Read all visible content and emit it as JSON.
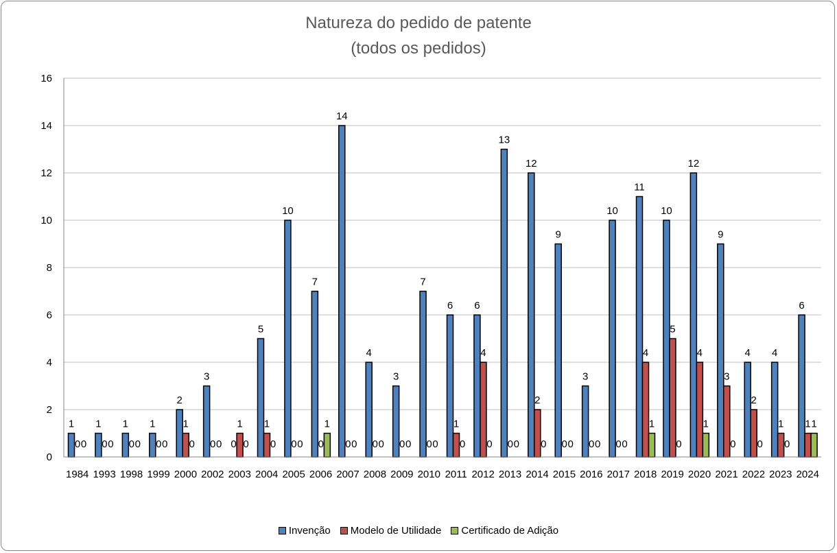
{
  "chart_data": {
    "type": "bar",
    "title": "Natureza do pedido de patente",
    "subtitle": "(todos os pedidos)",
    "categories": [
      "1984",
      "1993",
      "1998",
      "1999",
      "2000",
      "2002",
      "2003",
      "2004",
      "2005",
      "2006",
      "2007",
      "2008",
      "2009",
      "2010",
      "2011",
      "2012",
      "2013",
      "2014",
      "2015",
      "2016",
      "2017",
      "2018",
      "2019",
      "2020",
      "2021",
      "2022",
      "2023",
      "2024"
    ],
    "series": [
      {
        "name": "Invenção",
        "color": "#4F81BD",
        "values": [
          1,
          1,
          1,
          1,
          2,
          3,
          0,
          5,
          10,
          7,
          14,
          4,
          3,
          7,
          6,
          6,
          13,
          12,
          9,
          3,
          10,
          11,
          10,
          12,
          9,
          4,
          4,
          6
        ]
      },
      {
        "name": "Modelo de Utilidade",
        "color": "#C0504D",
        "values": [
          0,
          0,
          0,
          0,
          1,
          0,
          1,
          1,
          0,
          0,
          0,
          0,
          0,
          0,
          1,
          4,
          0,
          2,
          0,
          0,
          0,
          4,
          5,
          4,
          3,
          2,
          1,
          1
        ]
      },
      {
        "name": "Certificado de Adição",
        "color": "#9BBB59",
        "values": [
          0,
          0,
          0,
          0,
          0,
          0,
          0,
          0,
          0,
          1,
          0,
          0,
          0,
          0,
          0,
          0,
          0,
          0,
          0,
          0,
          0,
          1,
          0,
          1,
          0,
          0,
          0,
          1
        ]
      }
    ],
    "ylim": [
      0,
      16
    ],
    "yticks": [
      0,
      2,
      4,
      6,
      8,
      10,
      12,
      14,
      16
    ],
    "grid": true,
    "legend": "bottom",
    "data_labels": true
  }
}
